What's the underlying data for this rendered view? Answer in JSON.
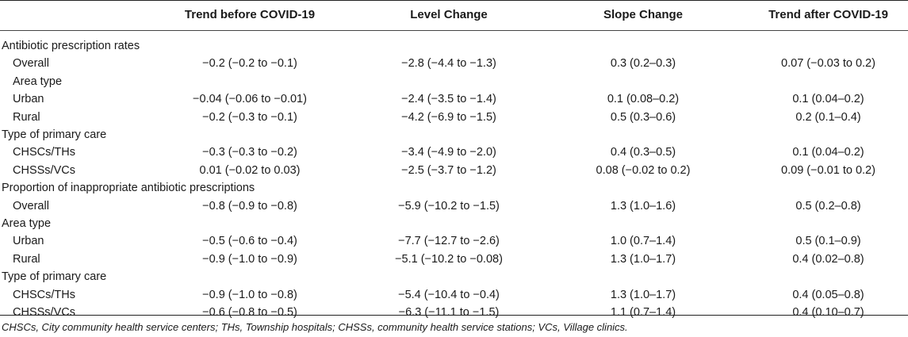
{
  "header": {
    "col1": "Trend before COVID-19",
    "col2": "Level Change",
    "col3": "Slope Change",
    "col4": "Trend after COVID-19"
  },
  "rows": [
    {
      "label": "Antibiotic prescription rates",
      "indent": false,
      "v1": "",
      "v2": "",
      "v3": "",
      "v4": ""
    },
    {
      "label": "Overall",
      "indent": true,
      "v1": "−0.2 (−0.2 to −0.1)",
      "v2": "−2.8 (−4.4 to −1.3)",
      "v3": "0.3 (0.2–0.3)",
      "v4": "0.07 (−0.03 to 0.2)"
    },
    {
      "label": "Area type",
      "indent": true,
      "v1": "",
      "v2": "",
      "v3": "",
      "v4": ""
    },
    {
      "label": "Urban",
      "indent": true,
      "v1": "−0.04 (−0.06 to −0.01)",
      "v2": "−2.4 (−3.5 to −1.4)",
      "v3": "0.1 (0.08–0.2)",
      "v4": "0.1 (0.04–0.2)"
    },
    {
      "label": "Rural",
      "indent": true,
      "v1": "−0.2 (−0.3 to −0.1)",
      "v2": "−4.2 (−6.9 to −1.5)",
      "v3": "0.5 (0.3–0.6)",
      "v4": "0.2 (0.1–0.4)"
    },
    {
      "label": "Type of primary care",
      "indent": false,
      "v1": "",
      "v2": "",
      "v3": "",
      "v4": ""
    },
    {
      "label": "CHSCs/THs",
      "indent": true,
      "v1": "−0.3 (−0.3 to −0.2)",
      "v2": "−3.4 (−4.9 to −2.0)",
      "v3": "0.4 (0.3–0.5)",
      "v4": "0.1 (0.04–0.2)"
    },
    {
      "label": "CHSSs/VCs",
      "indent": true,
      "v1": "0.01 (−0.02 to 0.03)",
      "v2": "−2.5 (−3.7 to −1.2)",
      "v3": "0.08 (−0.02 to 0.2)",
      "v4": "0.09 (−0.01 to 0.2)"
    },
    {
      "label": "Proportion of inappropriate antibiotic prescriptions",
      "indent": false,
      "v1": "",
      "v2": "",
      "v3": "",
      "v4": ""
    },
    {
      "label": "Overall",
      "indent": true,
      "v1": "−0.8 (−0.9 to −0.8)",
      "v2": "−5.9 (−10.2 to −1.5)",
      "v3": "1.3 (1.0–1.6)",
      "v4": "0.5 (0.2–0.8)"
    },
    {
      "label": "Area type",
      "indent": false,
      "v1": "",
      "v2": "",
      "v3": "",
      "v4": ""
    },
    {
      "label": "Urban",
      "indent": true,
      "v1": "−0.5 (−0.6 to −0.4)",
      "v2": "−7.7 (−12.7 to −2.6)",
      "v3": "1.0 (0.7–1.4)",
      "v4": "0.5 (0.1–0.9)"
    },
    {
      "label": "Rural",
      "indent": true,
      "v1": "−0.9 (−1.0 to −0.9)",
      "v2": "−5.1 (−10.2 to −0.08)",
      "v3": "1.3 (1.0–1.7)",
      "v4": "0.4 (0.02–0.8)"
    },
    {
      "label": "Type of primary care",
      "indent": false,
      "v1": "",
      "v2": "",
      "v3": "",
      "v4": ""
    },
    {
      "label": "CHSCs/THs",
      "indent": true,
      "v1": "−0.9 (−1.0 to −0.8)",
      "v2": "−5.4 (−10.4 to −0.4)",
      "v3": "1.3 (1.0–1.7)",
      "v4": "0.4 (0.05–0.8)"
    },
    {
      "label": "CHSSs/VCs",
      "indent": true,
      "v1": "−0.6 (−0.8 to −0.5)",
      "v2": "−6.3 (−11.1 to −1.5)",
      "v3": "1.1 (0.7–1.4)",
      "v4": "0.4 (0.10–0.7)"
    }
  ],
  "footnote": "CHSCs, City community health service centers; THs, Township hospitals; CHSSs, community health service stations; VCs, Village clinics."
}
